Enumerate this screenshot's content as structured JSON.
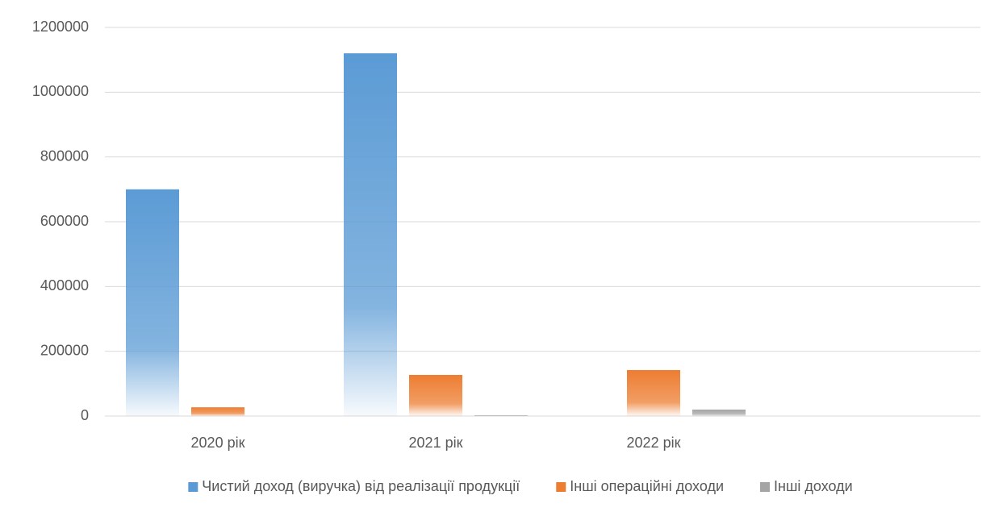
{
  "chart_data": {
    "type": "bar",
    "categories": [
      "2020 рік",
      "2021 рік",
      "2022 рік",
      null
    ],
    "series": [
      {
        "name": "Чистий доход (виручка) від реалізації продукції",
        "color": "#5b9bd5",
        "values": [
          700000,
          1120000,
          null,
          null
        ]
      },
      {
        "name": "Інші операційні доходи",
        "color": "#ed7d31",
        "values": [
          27000,
          127000,
          142000,
          null
        ]
      },
      {
        "name": "Інші доходи",
        "color": "#a5a5a5",
        "values": [
          null,
          2000,
          20000,
          null
        ]
      }
    ],
    "ylim": [
      0,
      1200000
    ],
    "yticks": [
      0,
      200000,
      400000,
      600000,
      800000,
      1000000,
      1200000
    ],
    "grid": true,
    "legend": "bottom"
  }
}
